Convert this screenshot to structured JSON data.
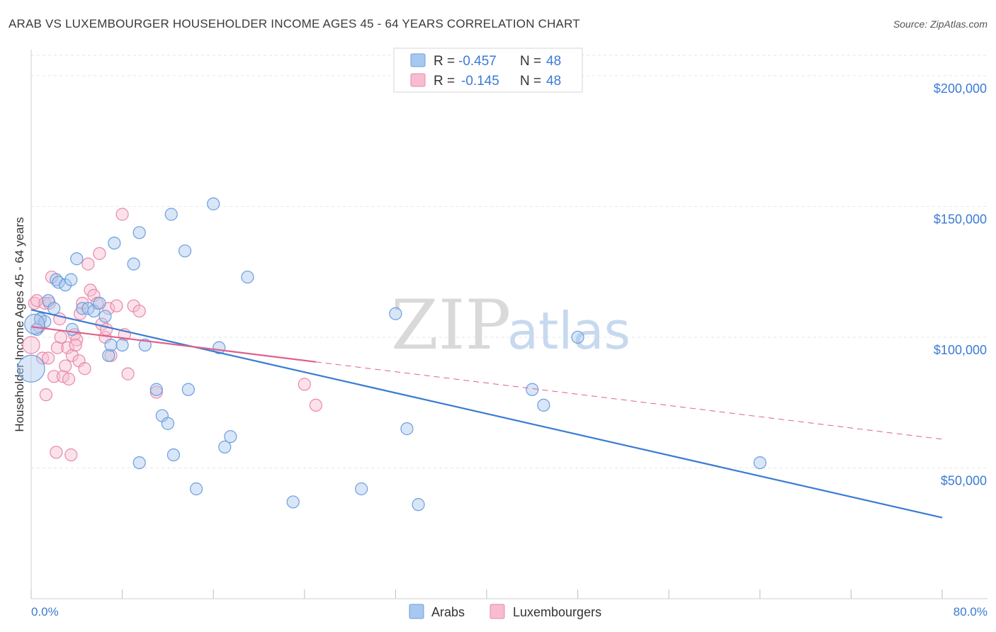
{
  "chart_data": {
    "type": "scatter",
    "title": "ARAB VS LUXEMBOURGER HOUSEHOLDER INCOME AGES 45 - 64 YEARS CORRELATION CHART",
    "source": "Source: ZipAtlas.com",
    "xlabel": "",
    "ylabel": "Householder Income Ages 45 - 64 years",
    "xlim": [
      0,
      80
    ],
    "ylim": [
      0,
      210000
    ],
    "x_tick_labels": [
      "0.0%",
      "80.0%"
    ],
    "y_ticks": [
      {
        "value": 50000,
        "label": "$50,000"
      },
      {
        "value": 100000,
        "label": "$100,000"
      },
      {
        "value": 150000,
        "label": "$150,000"
      },
      {
        "value": 200000,
        "label": "$200,000"
      }
    ],
    "watermark": {
      "part1": "ZIP",
      "part2": "atlas"
    },
    "legend": {
      "rows": [
        {
          "r_label": "R =",
          "r_value": "-0.457",
          "n_label": "N =",
          "n_value": "48"
        },
        {
          "r_label": "R =",
          "r_value": "-0.145",
          "n_label": "N =",
          "n_value": "48"
        }
      ]
    },
    "series": [
      {
        "name": "Arabs",
        "color": "#a8c8f0",
        "stroke": "#6a9fdc",
        "line_color": "#3b7bd4",
        "trend": {
          "x": [
            0,
            80
          ],
          "y": [
            110500,
            31000
          ],
          "dashed_from": null
        },
        "points": [
          [
            0,
            88000
          ],
          [
            0.5,
            103000
          ],
          [
            0.8,
            107000
          ],
          [
            1.2,
            106000
          ],
          [
            1.5,
            114000
          ],
          [
            2.0,
            111000
          ],
          [
            2.2,
            122000
          ],
          [
            2.4,
            121000
          ],
          [
            3.0,
            120000
          ],
          [
            3.5,
            122000
          ],
          [
            3.6,
            103000
          ],
          [
            4.0,
            130000
          ],
          [
            4.5,
            111000
          ],
          [
            5.0,
            111000
          ],
          [
            5.5,
            110000
          ],
          [
            6.0,
            113000
          ],
          [
            6.5,
            108000
          ],
          [
            6.8,
            93000
          ],
          [
            7.0,
            97000
          ],
          [
            7.3,
            136000
          ],
          [
            8.0,
            97000
          ],
          [
            9.0,
            128000
          ],
          [
            9.5,
            140000
          ],
          [
            10.0,
            97000
          ],
          [
            11.0,
            80000
          ],
          [
            11.5,
            70000
          ],
          [
            12.0,
            67000
          ],
          [
            12.3,
            147000
          ],
          [
            12.5,
            55000
          ],
          [
            13.5,
            133000
          ],
          [
            13.8,
            80000
          ],
          [
            14.5,
            42000
          ],
          [
            16.0,
            151000
          ],
          [
            16.5,
            96000
          ],
          [
            17.0,
            58000
          ],
          [
            17.5,
            62000
          ],
          [
            19.0,
            123000
          ],
          [
            23.0,
            37000
          ],
          [
            29.0,
            42000
          ],
          [
            32.0,
            109000
          ],
          [
            33.0,
            65000
          ],
          [
            34.0,
            36000
          ],
          [
            44.0,
            80000
          ],
          [
            45.0,
            74000
          ],
          [
            48.0,
            100000
          ],
          [
            64.0,
            52000
          ],
          [
            9.5,
            52000
          ],
          [
            0.3,
            105000
          ]
        ]
      },
      {
        "name": "Luxembourgers",
        "color": "#f7bcd0",
        "stroke": "#e889a8",
        "line_color": "#e0608a",
        "trend": {
          "x": [
            0,
            80
          ],
          "y": [
            104000,
            61000
          ],
          "dashed_from": 25
        },
        "points": [
          [
            0,
            97000
          ],
          [
            0.3,
            113000
          ],
          [
            0.5,
            114000
          ],
          [
            0.7,
            104000
          ],
          [
            1.0,
            92000
          ],
          [
            1.2,
            113000
          ],
          [
            1.3,
            78000
          ],
          [
            1.5,
            92000
          ],
          [
            1.8,
            123000
          ],
          [
            2.0,
            85000
          ],
          [
            2.2,
            56000
          ],
          [
            2.3,
            96000
          ],
          [
            2.5,
            107000
          ],
          [
            2.8,
            85000
          ],
          [
            3.0,
            89000
          ],
          [
            3.2,
            96000
          ],
          [
            3.3,
            84000
          ],
          [
            3.5,
            55000
          ],
          [
            3.6,
            93000
          ],
          [
            3.8,
            101000
          ],
          [
            4.0,
            99000
          ],
          [
            4.2,
            91000
          ],
          [
            4.5,
            113000
          ],
          [
            4.7,
            88000
          ],
          [
            5.0,
            128000
          ],
          [
            5.2,
            118000
          ],
          [
            5.5,
            116000
          ],
          [
            5.8,
            113000
          ],
          [
            6.0,
            132000
          ],
          [
            6.2,
            105000
          ],
          [
            6.5,
            100000
          ],
          [
            6.8,
            111000
          ],
          [
            7.0,
            93000
          ],
          [
            7.5,
            112000
          ],
          [
            8.0,
            147000
          ],
          [
            8.2,
            101000
          ],
          [
            8.5,
            86000
          ],
          [
            9.0,
            112000
          ],
          [
            9.5,
            110000
          ],
          [
            11.0,
            79000
          ],
          [
            24.0,
            82000
          ],
          [
            25.0,
            74000
          ],
          [
            0.8,
            107000
          ],
          [
            1.6,
            113000
          ],
          [
            2.6,
            100000
          ],
          [
            4.3,
            109000
          ],
          [
            3.9,
            97000
          ],
          [
            6.6,
            103000
          ]
        ]
      }
    ]
  }
}
